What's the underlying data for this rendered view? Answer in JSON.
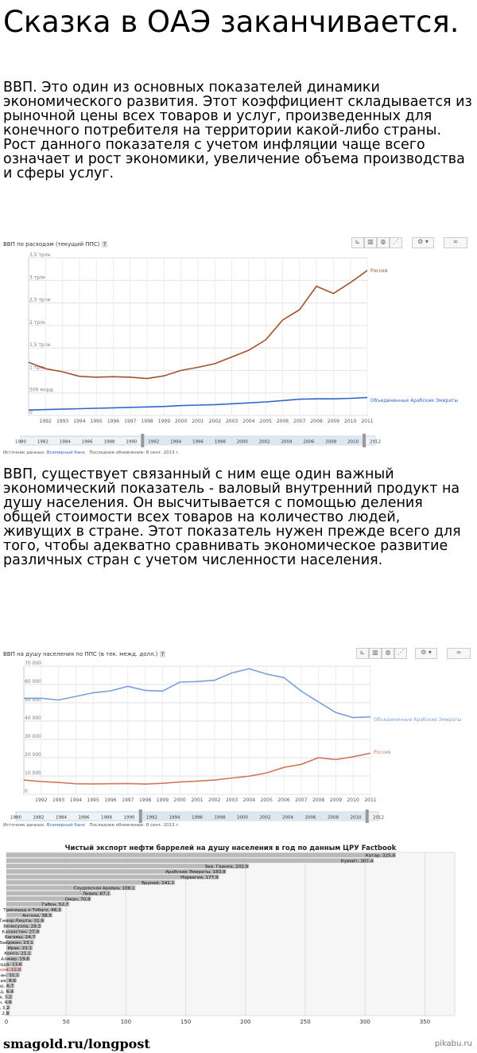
{
  "page": {
    "title": "Сказка в ОАЭ заканчивается.",
    "para1": "ВВП. Это один из основных показателей динамики экономического развития. Этот коэффициент складывается из рыночной цены всех товаров и услуг, произведенных для конечного потребителя на территории какой-либо страны. Рост данного показателя с учетом инфляции чаще всего означает и рост экономики, увеличение объема производства и сферы услуг.",
    "para2": "ВВП, существует связанный с ним еще один важный экономический показатель - валовый внутренний продукт на душу населения. Он высчитывается с помощью деления общей стоимости всех товаров на количество людей, живущих в стране. Этот показатель нужен прежде всего для того, чтобы адекватно сравнивать экономическое развитие различных стран с учетом численности населения.",
    "footer": "smagold.ru/longpost",
    "watermark": "pikabu.ru"
  },
  "toolbar": {
    "settings_icon": "gear-icon",
    "link_icon": "link-icon",
    "settings_label": "⚙ ▾",
    "link_label": "∞"
  },
  "chart_data": [
    {
      "type": "line",
      "title": "ВВП по расходам (текущий ППС)",
      "help": "?",
      "x": [
        1991,
        1992,
        1993,
        1994,
        1995,
        1996,
        1997,
        1998,
        1999,
        2000,
        2001,
        2002,
        2003,
        2004,
        2005,
        2006,
        2007,
        2008,
        2009,
        2010,
        2011
      ],
      "xticks": [
        "1992",
        "1993",
        "1994",
        "1995",
        "1996",
        "1997",
        "1998",
        "1999",
        "2000",
        "2001",
        "2002",
        "2003",
        "2004",
        "2005",
        "2006",
        "2007",
        "2008",
        "2009",
        "2010",
        "2011"
      ],
      "yticklabels": [
        "0",
        "500 млрд.",
        "1 трлн",
        "1,5 трлн",
        "2 трлн",
        "2,5 трлн",
        "3 трлн",
        "3,5 трлн"
      ],
      "ylim": [
        0,
        3.5
      ],
      "series": [
        {
          "name": "Россия",
          "color": "#a0522d",
          "values": [
            1.18,
            1.04,
            0.97,
            0.87,
            0.85,
            0.86,
            0.85,
            0.82,
            0.88,
            1.0,
            1.07,
            1.15,
            1.3,
            1.45,
            1.68,
            2.12,
            2.35,
            2.87,
            2.71,
            2.95,
            3.22
          ]
        },
        {
          "name": "Объединенные Арабские Эмираты",
          "color": "#3366cc",
          "values": [
            0.12,
            0.13,
            0.14,
            0.15,
            0.16,
            0.17,
            0.18,
            0.19,
            0.2,
            0.22,
            0.23,
            0.24,
            0.26,
            0.28,
            0.3,
            0.33,
            0.36,
            0.37,
            0.37,
            0.38,
            0.4
          ]
        }
      ],
      "range_ticks": [
        "1980",
        "1982",
        "1984",
        "1986",
        "1988",
        "1990",
        "1992",
        "1994",
        "1996",
        "1998",
        "2000",
        "2002",
        "2004",
        "2006",
        "2008",
        "2010",
        "2012"
      ],
      "source_label": "Источник данных:",
      "source_name": "Всемирный банк",
      "updated": "Последнее обновление: 8 сент. 2013 г."
    },
    {
      "type": "line",
      "title": "ВВП на душу населения по ППС (в тек. межд. долл.)",
      "help": "?",
      "x": [
        1991,
        1992,
        1993,
        1994,
        1995,
        1996,
        1997,
        1998,
        1999,
        2000,
        2001,
        2002,
        2003,
        2004,
        2005,
        2006,
        2007,
        2008,
        2009,
        2010,
        2011
      ],
      "xticks": [
        "1992",
        "1993",
        "1994",
        "1995",
        "1996",
        "1997",
        "1998",
        "1999",
        "2000",
        "2001",
        "2002",
        "2003",
        "2004",
        "2005",
        "2006",
        "2007",
        "2008",
        "2009",
        "2010",
        "2011"
      ],
      "yticklabels": [
        "0",
        "10 000",
        "20 000",
        "30 000",
        "40 000",
        "50 000",
        "60 000",
        "70 000"
      ],
      "ylim": [
        0,
        70000
      ],
      "series": [
        {
          "name": "Объединенные Арабские Эмираты",
          "color": "#7aa0d8",
          "values": [
            52500,
            52500,
            51500,
            53500,
            55500,
            56500,
            59000,
            56800,
            56400,
            61300,
            61600,
            62300,
            66300,
            68600,
            65700,
            63800,
            56400,
            50500,
            44700,
            41900,
            42300
          ]
        },
        {
          "name": "Россия",
          "color": "#d2785a",
          "values": [
            7800,
            7000,
            6500,
            5800,
            5700,
            5800,
            5900,
            5600,
            6000,
            6800,
            7200,
            7800,
            8900,
            9900,
            11700,
            14700,
            16400,
            20000,
            19000,
            20500,
            22500
          ]
        }
      ],
      "range_ticks": [
        "1980",
        "1982",
        "1984",
        "1986",
        "1988",
        "1990",
        "1992",
        "1994",
        "1996",
        "1998",
        "2000",
        "2002",
        "2004",
        "2006",
        "2008",
        "2010",
        "2012"
      ],
      "source_label": "Источник данных:",
      "source_name": "Всемирный банк",
      "updated": "Последнее обновление: 8 сент. 2013 г."
    },
    {
      "type": "bar",
      "title": "Чистый экспорт нефти баррелей на душу населения в год по данным ЦРУ Factbook",
      "categories": [
        "Катар",
        "Кувейт",
        "Экв. Гвинея",
        "Арабские Эмираты",
        "Норвегия",
        "Бруней",
        "Саудовская Аравия",
        "Ливия",
        "Оман",
        "Габон",
        "Тринидад и Тобаго",
        "Ангола",
        "Тимор-Лешти",
        "Венесуэла",
        "Казахстан",
        "Багамы",
        "Азербайджан",
        "Ирак",
        "Конго",
        "Алжир",
        "Канада",
        "Россия",
        "Иран",
        "Дания",
        "Эквадор",
        "Чад",
        "Нигерия",
        "Бахрейн",
        "Йемен",
        "Туркменистан"
      ],
      "values": [
        325.8,
        307.4,
        202.9,
        183.9,
        177.9,
        141.1,
        108.1,
        87.1,
        70.9,
        52.7,
        46.3,
        38.5,
        31.9,
        29.3,
        27.9,
        24.7,
        23.1,
        22.1,
        21.1,
        19.8,
        13.6,
        12.8,
        11.1,
        8.6,
        6.7,
        6.4,
        5.2,
        4.9,
        3.2,
        2.8
      ],
      "value_labels": [
        "325,8",
        "307,4",
        "202,9",
        "183,9",
        "177,9",
        "141,1",
        "108,1",
        "87,1",
        "70,9",
        "52,7",
        "46,3",
        "38,5",
        "31,9",
        "29,3",
        "27,9",
        "24,7",
        "23,1",
        "22,1",
        "21,1",
        "19,8",
        "13,6",
        "12,8",
        "11,1",
        "8,6",
        "6,7",
        "6,4",
        "5,2",
        "4,9",
        "3,2",
        "2,8"
      ],
      "highlight": "Россия",
      "highlight_color": "#cc2222",
      "bar_color": "#b9b9b9",
      "xlim": [
        0,
        375
      ],
      "xticks": [
        "0",
        "50",
        "100",
        "150",
        "200",
        "250",
        "300",
        "350"
      ]
    }
  ]
}
